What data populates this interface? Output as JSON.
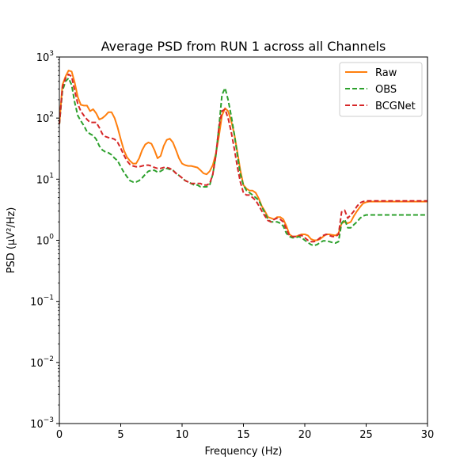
{
  "chart_data": {
    "type": "line",
    "title": "Average PSD from RUN 1 across all Channels",
    "xlabel": "Frequency (Hz)",
    "ylabel": "PSD (μV²/Hz)",
    "yscale": "log",
    "xlim": [
      0,
      30
    ],
    "ylim": [
      0.001,
      1000
    ],
    "legend_position": "top-right",
    "x_ticks": [
      {
        "value": 0,
        "label": "0"
      },
      {
        "value": 5,
        "label": "5"
      },
      {
        "value": 10,
        "label": "10"
      },
      {
        "value": 15,
        "label": "15"
      },
      {
        "value": 20,
        "label": "20"
      },
      {
        "value": 25,
        "label": "25"
      },
      {
        "value": 30,
        "label": "30"
      }
    ],
    "y_ticks": [
      {
        "value": 0.001,
        "base": "10",
        "exp": "−3"
      },
      {
        "value": 0.01,
        "base": "10",
        "exp": "−2"
      },
      {
        "value": 0.1,
        "base": "10",
        "exp": "−1"
      },
      {
        "value": 1,
        "base": "10",
        "exp": "0"
      },
      {
        "value": 10,
        "base": "10",
        "exp": "1"
      },
      {
        "value": 100,
        "base": "10",
        "exp": "2"
      },
      {
        "value": 1000,
        "base": "10",
        "exp": "3"
      }
    ],
    "series": [
      {
        "name": "Raw",
        "color": "#ff7f0e",
        "dash": "solid",
        "x": [
          0,
          0.25,
          0.5,
          0.75,
          1,
          1.25,
          1.5,
          1.75,
          2,
          2.25,
          2.5,
          2.75,
          3,
          3.25,
          3.5,
          3.75,
          4,
          4.25,
          4.5,
          4.75,
          5,
          5.25,
          5.5,
          5.75,
          6,
          6.25,
          6.5,
          6.75,
          7,
          7.25,
          7.5,
          7.75,
          8,
          8.25,
          8.5,
          8.75,
          9,
          9.25,
          9.5,
          9.75,
          10,
          10.25,
          10.5,
          10.75,
          11,
          11.25,
          11.5,
          11.75,
          12,
          12.25,
          12.5,
          12.75,
          13,
          13.25,
          13.5,
          13.75,
          14,
          14.25,
          14.5,
          14.75,
          15,
          15.25,
          15.5,
          15.75,
          16,
          16.25,
          16.5,
          16.75,
          17,
          17.25,
          17.5,
          17.75,
          18,
          18.25,
          18.5,
          18.75,
          19,
          19.25,
          19.5,
          19.75,
          20,
          20.25,
          20.5,
          20.75,
          21,
          21.25,
          21.5,
          21.75,
          22,
          22.25,
          22.5,
          22.75,
          23,
          23.25,
          23.5,
          23.75,
          24,
          24.25,
          24.5,
          24.75,
          25,
          25.25,
          25.5,
          25.75,
          26,
          26.25,
          26.5,
          26.75,
          27,
          27.25,
          27.5,
          27.75,
          28,
          28.25,
          28.5,
          28.75,
          29,
          29.25,
          29.5,
          29.75,
          30
        ],
        "y": [
          80,
          350,
          480,
          600,
          580,
          380,
          220,
          165,
          160,
          160,
          130,
          140,
          120,
          95,
          100,
          110,
          125,
          125,
          100,
          70,
          45,
          30,
          23,
          20,
          18,
          18,
          22,
          30,
          37,
          40,
          38,
          30,
          22,
          24,
          35,
          44,
          46,
          40,
          30,
          22,
          18,
          17,
          16.5,
          16.5,
          16,
          15.5,
          14,
          12.5,
          12,
          13.5,
          17,
          26,
          50,
          110,
          145,
          130,
          90,
          55,
          28,
          14,
          8,
          7,
          6.5,
          6.5,
          6,
          4.8,
          3.6,
          3.0,
          2.4,
          2.3,
          2.2,
          2.4,
          2.4,
          2.2,
          1.7,
          1.25,
          1.15,
          1.15,
          1.2,
          1.25,
          1.25,
          1.2,
          1.05,
          1.0,
          1.0,
          1.05,
          1.15,
          1.25,
          1.25,
          1.22,
          1.2,
          1.3,
          1.9,
          2.0,
          1.9,
          2.0,
          2.5,
          3.0,
          3.5,
          4.0,
          4.2,
          4.3,
          4.3,
          4.3,
          4.3,
          4.3,
          4.3,
          4.3,
          4.3,
          4.3,
          4.3,
          4.3,
          4.3,
          4.3,
          4.3,
          4.3,
          4.3,
          4.3,
          4.3,
          4.3,
          4.3
        ]
      },
      {
        "name": "OBS",
        "color": "#2ca02c",
        "dash": "dashed",
        "x": [
          0,
          0.25,
          0.5,
          0.75,
          1,
          1.25,
          1.5,
          1.75,
          2,
          2.25,
          2.5,
          2.75,
          3,
          3.25,
          3.5,
          3.75,
          4,
          4.25,
          4.5,
          4.75,
          5,
          5.25,
          5.5,
          5.75,
          6,
          6.25,
          6.5,
          6.75,
          7,
          7.25,
          7.5,
          7.75,
          8,
          8.25,
          8.5,
          8.75,
          9,
          9.25,
          9.5,
          9.75,
          10,
          10.25,
          10.5,
          10.75,
          11,
          11.25,
          11.5,
          11.75,
          12,
          12.25,
          12.5,
          12.75,
          13,
          13.25,
          13.5,
          13.75,
          14,
          14.25,
          14.5,
          14.75,
          15,
          15.25,
          15.5,
          15.75,
          16,
          16.25,
          16.5,
          16.75,
          17,
          17.25,
          17.5,
          17.75,
          18,
          18.25,
          18.5,
          18.75,
          19,
          19.25,
          19.5,
          19.75,
          20,
          20.25,
          20.5,
          20.75,
          21,
          21.25,
          21.5,
          21.75,
          22,
          22.25,
          22.5,
          22.75,
          23,
          23.25,
          23.5,
          23.75,
          24,
          24.25,
          24.5,
          24.75,
          25,
          25.25,
          25.5,
          25.75,
          26,
          26.25,
          26.5,
          26.75,
          27,
          27.25,
          27.5,
          27.75,
          28,
          28.25,
          28.5,
          28.75,
          29,
          29.25,
          29.5,
          29.75,
          30
        ],
        "y": [
          80,
          280,
          400,
          450,
          350,
          180,
          110,
          90,
          75,
          60,
          55,
          52,
          45,
          35,
          30,
          28,
          27,
          25,
          22,
          20,
          16,
          13,
          11,
          9.5,
          9,
          9,
          9.5,
          10.5,
          12,
          13.5,
          14,
          14,
          13,
          13.5,
          14.5,
          15,
          14.5,
          14,
          12.5,
          11.5,
          10.5,
          9.5,
          9,
          8.5,
          8,
          8,
          7.5,
          7.5,
          7.5,
          8,
          12,
          24,
          70,
          240,
          310,
          200,
          110,
          55,
          25,
          12,
          8,
          6.5,
          6,
          5.5,
          5,
          4.5,
          3.5,
          2.8,
          2.2,
          2.0,
          2.0,
          2.0,
          1.9,
          1.7,
          1.3,
          1.15,
          1.1,
          1.1,
          1.15,
          1.1,
          1.0,
          0.92,
          0.85,
          0.82,
          0.85,
          0.92,
          0.98,
          0.98,
          0.95,
          0.92,
          0.9,
          0.95,
          1.9,
          2.2,
          1.6,
          1.6,
          1.8,
          2.0,
          2.3,
          2.5,
          2.6,
          2.6,
          2.6,
          2.6,
          2.6,
          2.6,
          2.6,
          2.6,
          2.6,
          2.6,
          2.6,
          2.6,
          2.6,
          2.6,
          2.6,
          2.6,
          2.6,
          2.6,
          2.6,
          2.6,
          2.6
        ]
      },
      {
        "name": "BCGNet",
        "color": "#d62728",
        "dash": "dashed",
        "x": [
          0,
          0.25,
          0.5,
          0.75,
          1,
          1.25,
          1.5,
          1.75,
          2,
          2.25,
          2.5,
          2.75,
          3,
          3.25,
          3.5,
          3.75,
          4,
          4.25,
          4.5,
          4.75,
          5,
          5.25,
          5.5,
          5.75,
          6,
          6.25,
          6.5,
          6.75,
          7,
          7.25,
          7.5,
          7.75,
          8,
          8.25,
          8.5,
          8.75,
          9,
          9.25,
          9.5,
          9.75,
          10,
          10.25,
          10.5,
          10.75,
          11,
          11.25,
          11.5,
          11.75,
          12,
          12.25,
          12.5,
          12.75,
          13,
          13.25,
          13.5,
          13.75,
          14,
          14.25,
          14.5,
          14.75,
          15,
          15.25,
          15.5,
          15.75,
          16,
          16.25,
          16.5,
          16.75,
          17,
          17.25,
          17.5,
          17.75,
          18,
          18.25,
          18.5,
          18.75,
          19,
          19.25,
          19.5,
          19.75,
          20,
          20.25,
          20.5,
          20.75,
          21,
          21.25,
          21.5,
          21.75,
          22,
          22.25,
          22.5,
          22.75,
          23,
          23.25,
          23.5,
          23.75,
          24,
          24.25,
          24.5,
          24.75,
          25,
          25.25,
          25.5,
          25.75,
          26,
          26.25,
          26.5,
          26.75,
          27,
          27.25,
          27.5,
          27.75,
          28,
          28.25,
          28.5,
          28.75,
          29,
          29.25,
          29.5,
          29.75,
          30
        ],
        "y": [
          80,
          320,
          450,
          520,
          480,
          280,
          170,
          130,
          110,
          95,
          85,
          85,
          85,
          70,
          55,
          50,
          48,
          47,
          45,
          40,
          32,
          25,
          20,
          17.5,
          16.5,
          16,
          16,
          16.5,
          17,
          17,
          16.5,
          15.5,
          15,
          15,
          15.5,
          15.5,
          15,
          14,
          12.5,
          11.5,
          10.5,
          9.5,
          9,
          8.5,
          8.5,
          8.5,
          8.5,
          8,
          8,
          8.5,
          12,
          24,
          70,
          130,
          140,
          100,
          60,
          32,
          16,
          9,
          6,
          5.5,
          5.5,
          5.0,
          4.5,
          3.7,
          3.0,
          2.5,
          2.1,
          2.0,
          2.2,
          2.3,
          2.2,
          2.0,
          1.5,
          1.2,
          1.15,
          1.15,
          1.2,
          1.2,
          1.1,
          1.0,
          0.95,
          0.95,
          1.0,
          1.1,
          1.2,
          1.25,
          1.2,
          1.15,
          1.15,
          1.25,
          2.9,
          3.1,
          2.3,
          2.6,
          3.0,
          3.6,
          4.1,
          4.3,
          4.4,
          4.4,
          4.4,
          4.4,
          4.4,
          4.4,
          4.4,
          4.4,
          4.4,
          4.4,
          4.4,
          4.4,
          4.4,
          4.4,
          4.4,
          4.4,
          4.4,
          4.4,
          4.4,
          4.4,
          4.4
        ]
      }
    ]
  }
}
